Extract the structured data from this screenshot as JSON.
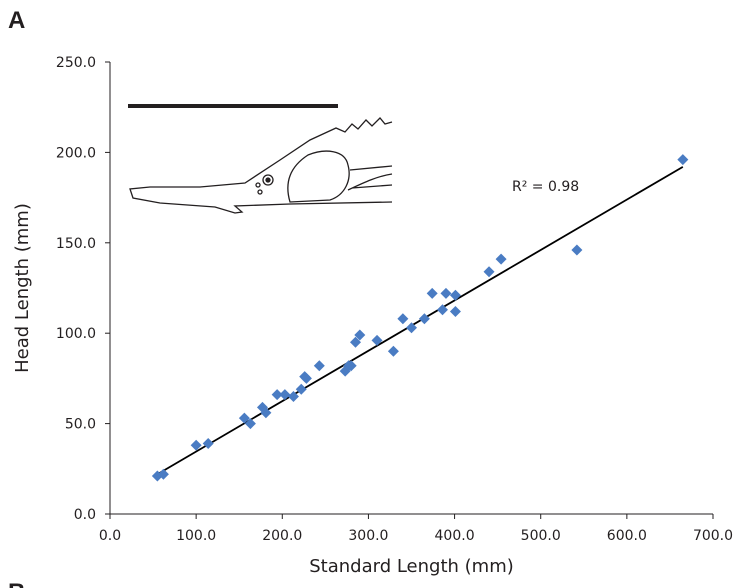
{
  "chart_data": {
    "type": "scatter",
    "panel_label": "A",
    "next_panel_label": "B",
    "x_label": "Standard Length (mm)",
    "y_label": "Head Length (mm)",
    "annotation": "R² = 0.98",
    "color": "#4a7cc3",
    "x": [
      55,
      62,
      100,
      114,
      156,
      163,
      177,
      181,
      194,
      203,
      213,
      222,
      226,
      228,
      243,
      273,
      277,
      280,
      285,
      290,
      310,
      329,
      340,
      350,
      365,
      374,
      390,
      386,
      401,
      401,
      440,
      454,
      542,
      665
    ],
    "values": [
      21,
      22,
      38,
      39,
      53,
      50,
      59,
      56,
      66,
      66,
      65,
      69,
      76,
      75,
      82,
      79,
      82,
      82,
      95,
      99,
      96,
      90,
      108,
      103,
      108,
      122,
      122,
      113,
      112,
      121,
      134,
      141,
      146,
      196
    ],
    "trendline": {
      "x": [
        55,
        665
      ],
      "y": [
        22,
        192
      ]
    },
    "xlim": [
      0,
      700
    ],
    "xticks": [
      {
        "value": 0,
        "label": "0.0"
      },
      {
        "value": 100,
        "label": "100.0"
      },
      {
        "value": 200,
        "label": "200.0"
      },
      {
        "value": 300,
        "label": "300.0"
      },
      {
        "value": 400,
        "label": "400.0"
      },
      {
        "value": 500,
        "label": "500.0"
      },
      {
        "value": 600,
        "label": "600.0"
      },
      {
        "value": 700,
        "label": "700.0"
      }
    ],
    "ylim": [
      0,
      250
    ],
    "yticks": [
      {
        "value": 0,
        "label": "0.0"
      },
      {
        "value": 50,
        "label": "50.0"
      },
      {
        "value": 100,
        "label": "100.0"
      },
      {
        "value": 150,
        "label": "150.0"
      },
      {
        "value": 200,
        "label": "200.0"
      },
      {
        "value": 250,
        "label": "250.0"
      }
    ]
  }
}
